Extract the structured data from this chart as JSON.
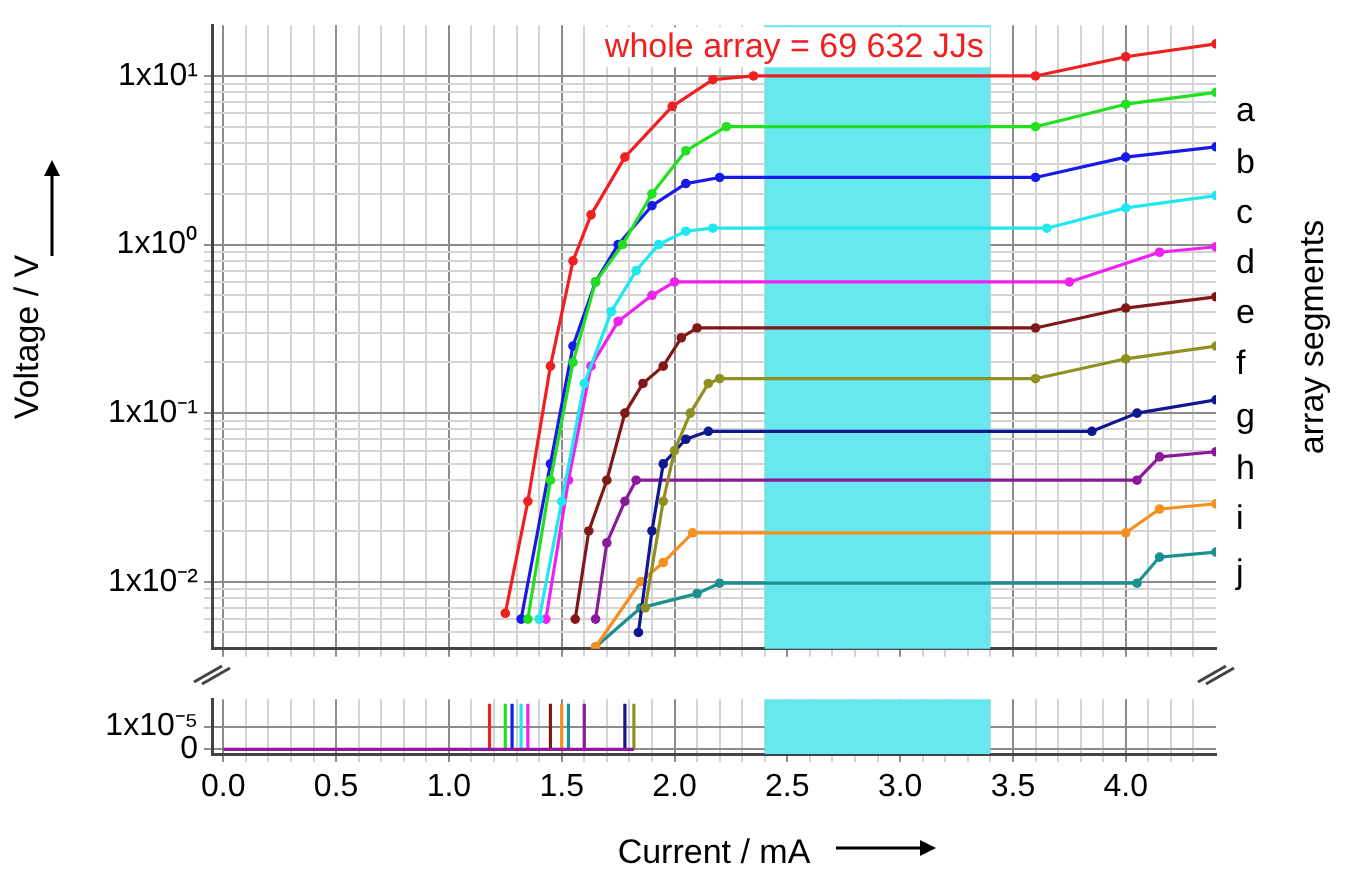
{
  "chart_data": [
    {
      "type": "line",
      "ylabel": "Voltage / V",
      "legend_title": "array segments",
      "log": "y",
      "grid": true,
      "marker": "circle",
      "tick_labels": "y",
      "xlim": [
        -0.05,
        4.4
      ],
      "ylim": [
        0.004,
        20
      ],
      "xticks": [
        {
          "value": 0,
          "label": null
        },
        {
          "value": 0.1,
          "label": null
        },
        {
          "value": 0.2,
          "label": null
        },
        {
          "value": 0.3,
          "label": null
        },
        {
          "value": 0.4,
          "label": null
        },
        {
          "value": 0.5,
          "label": null
        },
        {
          "value": 0.6,
          "label": null
        },
        {
          "value": 0.7,
          "label": null
        },
        {
          "value": 0.8,
          "label": null
        },
        {
          "value": 0.9,
          "label": null
        },
        {
          "value": 1,
          "label": null
        },
        {
          "value": 1.1,
          "label": null
        },
        {
          "value": 1.2,
          "label": null
        },
        {
          "value": 1.3,
          "label": null
        },
        {
          "value": 1.4,
          "label": null
        },
        {
          "value": 1.5,
          "label": null
        },
        {
          "value": 1.6,
          "label": null
        },
        {
          "value": 1.7,
          "label": null
        },
        {
          "value": 1.8,
          "label": null
        },
        {
          "value": 1.9,
          "label": null
        },
        {
          "value": 2,
          "label": null
        },
        {
          "value": 2.1,
          "label": null
        },
        {
          "value": 2.2,
          "label": null
        },
        {
          "value": 2.3,
          "label": null
        },
        {
          "value": 2.4,
          "label": null
        },
        {
          "value": 2.5,
          "label": null
        },
        {
          "value": 2.6,
          "label": null
        },
        {
          "value": 2.7,
          "label": null
        },
        {
          "value": 2.8,
          "label": null
        },
        {
          "value": 2.9,
          "label": null
        },
        {
          "value": 3,
          "label": null
        },
        {
          "value": 3.1,
          "label": null
        },
        {
          "value": 3.2,
          "label": null
        },
        {
          "value": 3.3,
          "label": null
        },
        {
          "value": 3.4,
          "label": null
        },
        {
          "value": 3.5,
          "label": null
        },
        {
          "value": 3.6,
          "label": null
        },
        {
          "value": 3.7,
          "label": null
        },
        {
          "value": 3.8,
          "label": null
        },
        {
          "value": 3.9,
          "label": null
        },
        {
          "value": 4,
          "label": null
        },
        {
          "value": 4.1,
          "label": null
        },
        {
          "value": 4.2,
          "label": null
        },
        {
          "value": 4.3,
          "label": null
        }
      ],
      "yticks": [
        {
          "value": 0.005,
          "label": null
        },
        {
          "value": 0.006,
          "label": null
        },
        {
          "value": 0.007,
          "label": null
        },
        {
          "value": 0.008,
          "label": null
        },
        {
          "value": 0.009,
          "label": null
        },
        {
          "value": 0.01,
          "label": "1x10⁻²"
        },
        {
          "value": 0.02,
          "label": null
        },
        {
          "value": 0.03,
          "label": null
        },
        {
          "value": 0.04,
          "label": null
        },
        {
          "value": 0.05,
          "label": null
        },
        {
          "value": 0.06,
          "label": null
        },
        {
          "value": 0.07,
          "label": null
        },
        {
          "value": 0.08,
          "label": null
        },
        {
          "value": 0.09,
          "label": null
        },
        {
          "value": 0.1,
          "label": "1x10⁻¹"
        },
        {
          "value": 0.2,
          "label": null
        },
        {
          "value": 0.3,
          "label": null
        },
        {
          "value": 0.4,
          "label": null
        },
        {
          "value": 0.5,
          "label": null
        },
        {
          "value": 0.6,
          "label": null
        },
        {
          "value": 0.7,
          "label": null
        },
        {
          "value": 0.8,
          "label": null
        },
        {
          "value": 0.9,
          "label": null
        },
        {
          "value": 1,
          "label": "1x10⁰"
        },
        {
          "value": 2,
          "label": null
        },
        {
          "value": 3,
          "label": null
        },
        {
          "value": 4,
          "label": null
        },
        {
          "value": 5,
          "label": null
        },
        {
          "value": 6,
          "label": null
        },
        {
          "value": 7,
          "label": null
        },
        {
          "value": 8,
          "label": null
        },
        {
          "value": 9,
          "label": null
        },
        {
          "value": 10,
          "label": "1x10¹"
        }
      ],
      "bands": [
        {
          "axis": "x",
          "from": 2.4,
          "to": 3.4,
          "color": "#66e8ee"
        }
      ],
      "series": [
        {
          "name": "whole array = 69 632 JJs",
          "color": "#f02020",
          "x": [
            1.25,
            1.35,
            1.45,
            1.55,
            1.63,
            1.78,
            1.99,
            2.17,
            2.35,
            3.6,
            4.0,
            4.4
          ],
          "values": [
            0.0065,
            0.03,
            0.19,
            0.8,
            1.5,
            3.3,
            6.6,
            9.5,
            10,
            10,
            13,
            15.5
          ]
        },
        {
          "name": "a",
          "color": "#20e020",
          "x": [
            1.35,
            1.45,
            1.55,
            1.65,
            1.77,
            1.9,
            2.05,
            2.23,
            3.6,
            4.0,
            4.4
          ],
          "values": [
            0.006,
            0.04,
            0.2,
            0.6,
            1.0,
            2.0,
            3.6,
            5,
            5,
            6.8,
            8
          ]
        },
        {
          "name": "b",
          "color": "#1a1ae8",
          "x": [
            1.32,
            1.45,
            1.55,
            1.65,
            1.75,
            1.9,
            2.05,
            2.2,
            3.6,
            4.0,
            4.4
          ],
          "values": [
            0.006,
            0.05,
            0.25,
            0.6,
            1.0,
            1.7,
            2.3,
            2.5,
            2.5,
            3.3,
            3.8
          ]
        },
        {
          "name": "c",
          "color": "#20e8f0",
          "x": [
            1.4,
            1.5,
            1.6,
            1.72,
            1.83,
            1.93,
            2.05,
            2.17,
            3.65,
            4.0,
            4.4
          ],
          "values": [
            0.006,
            0.03,
            0.15,
            0.4,
            0.7,
            1.0,
            1.2,
            1.25,
            1.25,
            1.65,
            1.95
          ]
        },
        {
          "name": "d",
          "color": "#f020f0",
          "x": [
            1.43,
            1.53,
            1.63,
            1.75,
            1.9,
            2.0,
            3.75,
            4.15,
            4.4
          ],
          "values": [
            0.006,
            0.04,
            0.19,
            0.35,
            0.5,
            0.6,
            0.6,
            0.9,
            0.97
          ]
        },
        {
          "name": "e",
          "color": "#801818",
          "x": [
            1.56,
            1.62,
            1.7,
            1.78,
            1.86,
            1.95,
            2.03,
            2.1,
            3.6,
            4.0,
            4.4
          ],
          "values": [
            0.006,
            0.02,
            0.04,
            0.1,
            0.15,
            0.19,
            0.28,
            0.32,
            0.32,
            0.42,
            0.49
          ]
        },
        {
          "name": "f",
          "color": "#909020",
          "x": [
            1.87,
            1.95,
            2.0,
            2.07,
            2.15,
            2.2,
            3.6,
            4.0,
            4.4
          ],
          "values": [
            0.007,
            0.03,
            0.06,
            0.1,
            0.15,
            0.16,
            0.16,
            0.21,
            0.25
          ]
        },
        {
          "name": "g",
          "color": "#101890",
          "x": [
            1.84,
            1.9,
            1.95,
            2.05,
            2.15,
            3.85,
            4.05,
            4.4
          ],
          "values": [
            0.005,
            0.02,
            0.05,
            0.07,
            0.078,
            0.078,
            0.1,
            0.12
          ]
        },
        {
          "name": "h",
          "color": "#8a1a9a",
          "x": [
            1.65,
            1.7,
            1.78,
            1.83,
            4.05,
            4.15,
            4.4
          ],
          "values": [
            0.006,
            0.017,
            0.03,
            0.04,
            0.04,
            0.055,
            0.059
          ]
        },
        {
          "name": "i",
          "color": "#f59020",
          "x": [
            1.65,
            1.85,
            1.95,
            2.08,
            4.0,
            4.15,
            4.4
          ],
          "values": [
            0.0041,
            0.01,
            0.013,
            0.0195,
            0.0195,
            0.027,
            0.029
          ]
        },
        {
          "name": "j",
          "color": "#1a9090",
          "x": [
            1.65,
            1.85,
            2.1,
            2.2,
            4.05,
            4.15,
            4.4
          ],
          "values": [
            0.0041,
            0.007,
            0.0085,
            0.0098,
            0.0098,
            0.014,
            0.015
          ]
        }
      ]
    },
    {
      "type": "line",
      "xlabel": "Current / mA",
      "grid": true,
      "marker": "none",
      "xlim": [
        -0.05,
        4.4
      ],
      "ylim": [
        -2e-06,
        2.2e-05
      ],
      "xticks": [
        {
          "value": 0,
          "label": "0.0"
        },
        {
          "value": 0.1,
          "label": null
        },
        {
          "value": 0.2,
          "label": null
        },
        {
          "value": 0.3,
          "label": null
        },
        {
          "value": 0.4,
          "label": null
        },
        {
          "value": 0.5,
          "label": "0.5"
        },
        {
          "value": 0.6,
          "label": null
        },
        {
          "value": 0.7,
          "label": null
        },
        {
          "value": 0.8,
          "label": null
        },
        {
          "value": 0.9,
          "label": null
        },
        {
          "value": 1,
          "label": "1.0"
        },
        {
          "value": 1.1,
          "label": null
        },
        {
          "value": 1.2,
          "label": null
        },
        {
          "value": 1.3,
          "label": null
        },
        {
          "value": 1.4,
          "label": null
        },
        {
          "value": 1.5,
          "label": "1.5"
        },
        {
          "value": 1.6,
          "label": null
        },
        {
          "value": 1.7,
          "label": null
        },
        {
          "value": 1.8,
          "label": null
        },
        {
          "value": 1.9,
          "label": null
        },
        {
          "value": 2,
          "label": "2.0"
        },
        {
          "value": 2.1,
          "label": null
        },
        {
          "value": 2.2,
          "label": null
        },
        {
          "value": 2.3,
          "label": null
        },
        {
          "value": 2.4,
          "label": null
        },
        {
          "value": 2.5,
          "label": "2.5"
        },
        {
          "value": 2.6,
          "label": null
        },
        {
          "value": 2.7,
          "label": null
        },
        {
          "value": 2.8,
          "label": null
        },
        {
          "value": 2.9,
          "label": null
        },
        {
          "value": 3,
          "label": "3.0"
        },
        {
          "value": 3.1,
          "label": null
        },
        {
          "value": 3.2,
          "label": null
        },
        {
          "value": 3.3,
          "label": null
        },
        {
          "value": 3.4,
          "label": null
        },
        {
          "value": 3.5,
          "label": "3.5"
        },
        {
          "value": 3.6,
          "label": null
        },
        {
          "value": 3.7,
          "label": null
        },
        {
          "value": 3.8,
          "label": null
        },
        {
          "value": 3.9,
          "label": null
        },
        {
          "value": 4,
          "label": "4.0"
        },
        {
          "value": 4.1,
          "label": null
        },
        {
          "value": 4.2,
          "label": null
        },
        {
          "value": 4.3,
          "label": null
        }
      ],
      "yticks": [
        {
          "value": 0,
          "label": "0"
        },
        {
          "value": 1e-05,
          "label": "1x10⁻⁵"
        }
      ],
      "bands": [
        {
          "axis": "x",
          "from": 2.4,
          "to": 3.4,
          "color": "#66e8ee"
        }
      ],
      "series": [
        {
          "color": "#8a1a9a",
          "x": [
            0,
            1.82
          ],
          "values": [
            0,
            0
          ]
        },
        {
          "color": "#f02020",
          "x": [
            1.18,
            1.18
          ],
          "values": [
            0,
            2e-05
          ]
        },
        {
          "color": "#20e020",
          "x": [
            1.25,
            1.25
          ],
          "values": [
            0,
            2e-05
          ]
        },
        {
          "color": "#1a1ae8",
          "x": [
            1.28,
            1.28
          ],
          "values": [
            0,
            2e-05
          ]
        },
        {
          "color": "#20e8f0",
          "x": [
            1.32,
            1.32
          ],
          "values": [
            0,
            2e-05
          ]
        },
        {
          "color": "#f020f0",
          "x": [
            1.35,
            1.35
          ],
          "values": [
            0,
            2e-05
          ]
        },
        {
          "color": "#801818",
          "x": [
            1.45,
            1.45
          ],
          "values": [
            0,
            2e-05
          ]
        },
        {
          "color": "#909020",
          "x": [
            1.82,
            1.82
          ],
          "values": [
            0,
            2e-05
          ]
        },
        {
          "color": "#101890",
          "x": [
            1.78,
            1.78
          ],
          "values": [
            0,
            2e-05
          ]
        },
        {
          "color": "#8a1a9a",
          "x": [
            1.6,
            1.6
          ],
          "values": [
            0,
            2e-05
          ]
        },
        {
          "color": "#f59020",
          "x": [
            1.5,
            1.5
          ],
          "values": [
            0,
            2e-05
          ]
        },
        {
          "color": "#1a9090",
          "x": [
            1.53,
            1.53
          ],
          "values": [
            0,
            2e-05
          ]
        }
      ]
    }
  ]
}
